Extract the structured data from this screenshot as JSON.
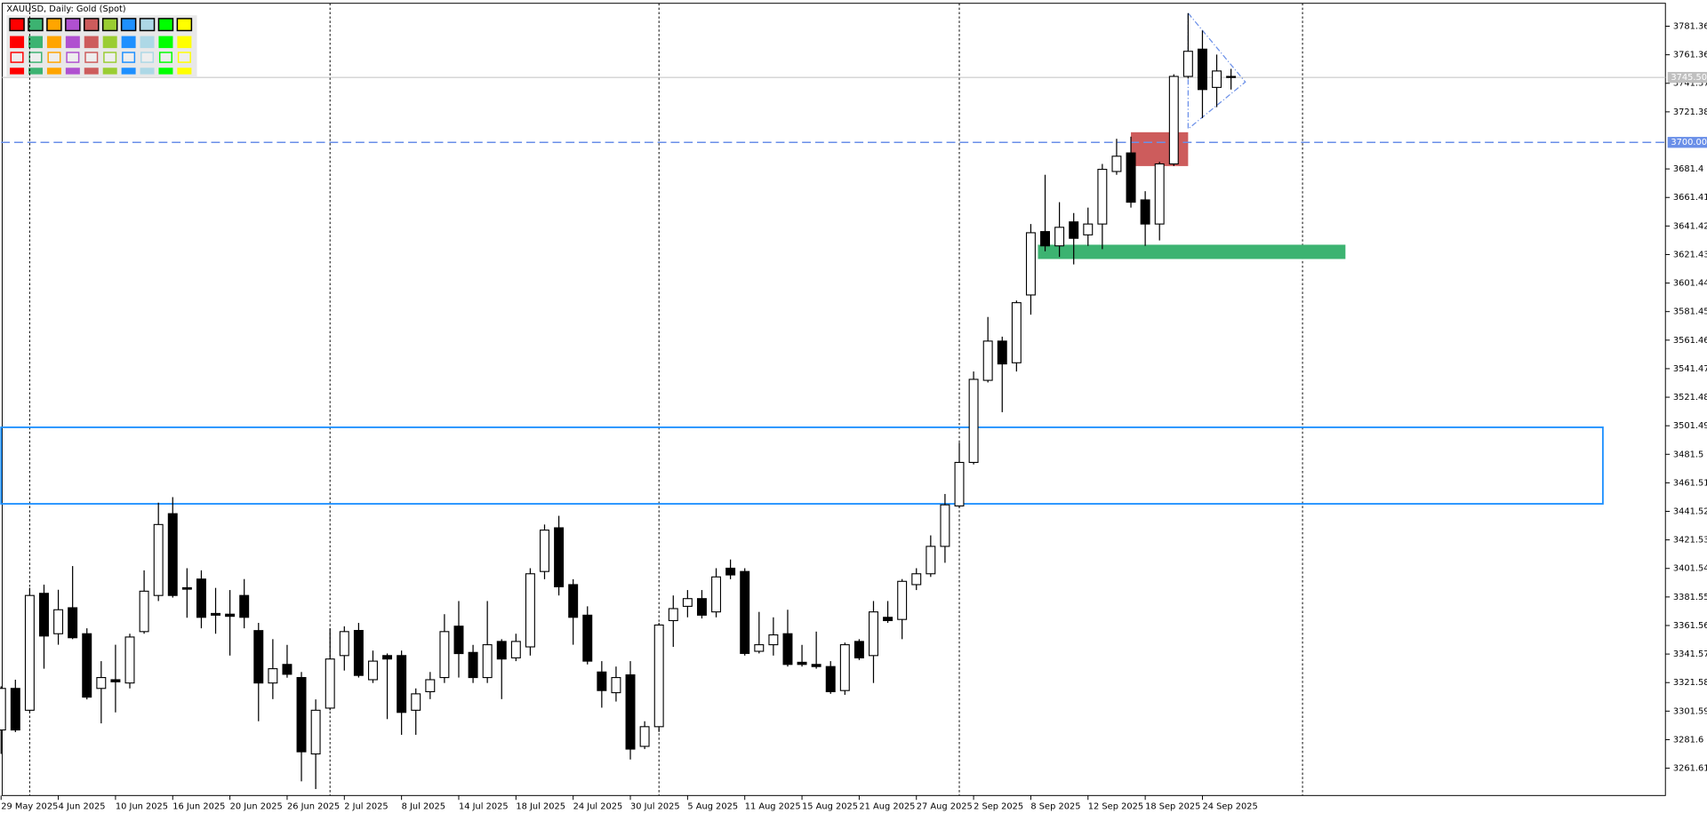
{
  "chart_data": {
    "type": "candlestick",
    "title": "XAUUSD, Daily:  Gold (Spot)",
    "x": [
      "29 May 2025",
      null,
      null,
      null,
      "4 Jun 2025",
      null,
      null,
      null,
      "10 Jun 2025",
      null,
      null,
      null,
      "16 Jun 2025",
      null,
      null,
      null,
      "20 Jun 2025",
      null,
      null,
      null,
      "26 Jun 2025",
      null,
      null,
      null,
      "2 Jul 2025",
      null,
      null,
      null,
      "8 Jul 2025",
      null,
      null,
      null,
      "14 Jul 2025",
      null,
      null,
      null,
      "18 Jul 2025",
      null,
      null,
      null,
      "24 Jul 2025",
      null,
      null,
      null,
      "30 Jul 2025",
      null,
      null,
      null,
      "5 Aug 2025",
      null,
      null,
      null,
      "11 Aug 2025",
      null,
      null,
      null,
      "15 Aug 2025",
      null,
      null,
      null,
      "21 Aug 2025",
      null,
      null,
      null,
      "27 Aug 2025",
      null,
      null,
      null,
      "2 Sep 2025",
      null,
      null,
      null,
      "8 Sep 2025",
      null,
      null,
      null,
      "12 Sep 2025",
      null,
      null,
      null,
      "18 Sep 2025",
      null,
      null,
      null,
      "24 Sep 2025",
      null,
      null
    ],
    "series": [
      {
        "name": "XAUUSD",
        "up_color": "#ffffff",
        "down_color": "#000000",
        "open": [
          3288.4,
          3317.5,
          3302.2,
          3384.1,
          3355.8,
          3374,
          3355.8,
          3317.5,
          3323.6,
          3321.3,
          3357.3,
          3382.6,
          3439.9,
          3388,
          3394.1,
          3370,
          3369.5,
          3382.6,
          3358,
          3321.3,
          3334.3,
          3325.1,
          3271.6,
          3303.7,
          3340.5,
          3358.1,
          3323.6,
          3340.5,
          3340.5,
          3302.2,
          3315.2,
          3325.1,
          3361.1,
          3342.7,
          3325.1,
          3350.4,
          3338.9,
          3346.6,
          3399.4,
          3430,
          3390.2,
          3368.8,
          3329,
          3314.5,
          3327,
          3276.9,
          3290.7,
          3365,
          3375,
          3380.4,
          3371.1,
          3401.7,
          3399.4,
          3343.5,
          3348.1,
          3355.8,
          3335.8,
          3334.3,
          3332.8,
          3316,
          3350.4,
          3340.5,
          3367.3,
          3365.8,
          3390.2,
          3397.8,
          3417,
          3445.3,
          3475.8,
          3533.3,
          3560.8,
          3545.6,
          3593.1,
          3637.5,
          3627.5,
          3644.3,
          3635.2,
          3642.8,
          3679.6,
          3692.6,
          3659.7,
          3642.8,
          3684.9,
          3746.2,
          3765.3,
          3738.5,
          3746.2
        ],
        "high": [
          3319,
          3323.6,
          3387.9,
          3390.2,
          3386.6,
          3403.2,
          3359.6,
          3336.6,
          3348.1,
          3355.8,
          3400.2,
          3447.6,
          3451.5,
          3401.7,
          3400.2,
          3387.9,
          3386.4,
          3394.1,
          3363.4,
          3352,
          3348,
          3329,
          3309.8,
          3359.6,
          3361,
          3363.4,
          3344,
          3342,
          3344,
          3317.5,
          3329,
          3369.5,
          3378.7,
          3348,
          3378.7,
          3352,
          3355.8,
          3401.7,
          3432.3,
          3438.4,
          3394,
          3375,
          3336.6,
          3332.8,
          3336.6,
          3294.5,
          3363.4,
          3382.6,
          3386.4,
          3386.4,
          3401.7,
          3407.8,
          3401.7,
          3371.1,
          3367.3,
          3372.6,
          3348,
          3357.3,
          3336.6,
          3349.6,
          3352,
          3378.7,
          3378.7,
          3394.1,
          3401.7,
          3424.7,
          3453.7,
          3489.6,
          3539.5,
          3577.7,
          3563.9,
          3589.2,
          3642.8,
          3677.3,
          3658.1,
          3650.5,
          3654.3,
          3684.9,
          3702.5,
          3704,
          3665.8,
          3686.4,
          3747.7,
          3790.5,
          3778.3,
          3761.5,
          3751.5
        ],
        "low": [
          3271.6,
          3286.9,
          3300.7,
          3331.3,
          3348.1,
          3352,
          3309.8,
          3293,
          3300.7,
          3317.5,
          3355.8,
          3378.7,
          3381.1,
          3367,
          3359.6,
          3355.8,
          3340.5,
          3359.6,
          3294.5,
          3310,
          3325,
          3252.4,
          3247,
          3302.2,
          3330,
          3325.1,
          3321.3,
          3296,
          3285,
          3285,
          3310,
          3321.3,
          3325.1,
          3321.3,
          3321.3,
          3310,
          3336.6,
          3340.5,
          3394,
          3382.6,
          3348.1,
          3334.3,
          3304,
          3308.3,
          3267.7,
          3275,
          3287,
          3346.6,
          3367.3,
          3366.5,
          3367.3,
          3394,
          3340.5,
          3342,
          3340.5,
          3332.8,
          3332.8,
          3331.3,
          3313.7,
          3313,
          3337.4,
          3321.3,
          3363.4,
          3352,
          3386.4,
          3395.6,
          3405.5,
          3443.8,
          3474.4,
          3531.8,
          3511,
          3539.5,
          3579.3,
          3623.7,
          3619.8,
          3614.5,
          3627.5,
          3625.2,
          3677.3,
          3654.3,
          3627.5,
          3631.3,
          3683.4,
          3744.7,
          3717,
          3724.7,
          3737
        ],
        "close": [
          3317.5,
          3288.4,
          3382.6,
          3354.2,
          3372.6,
          3353,
          3311.4,
          3325.1,
          3322.1,
          3353.5,
          3385.6,
          3432.3,
          3382.6,
          3387,
          3367.3,
          3368.8,
          3368,
          3367.3,
          3321.3,
          3331.3,
          3327.4,
          3273.1,
          3302.2,
          3338.1,
          3357.3,
          3326.6,
          3336.6,
          3338.1,
          3300.7,
          3313.7,
          3323.6,
          3357.3,
          3341.9,
          3325.1,
          3348.1,
          3338.1,
          3350.4,
          3397.8,
          3428.4,
          3388.7,
          3367.3,
          3336.6,
          3316,
          3325.1,
          3275,
          3290.7,
          3361.9,
          3373.4,
          3380.4,
          3368.8,
          3395.6,
          3397,
          3342,
          3348.1,
          3355,
          3334.3,
          3334.3,
          3332.8,
          3315.2,
          3348.1,
          3338.9,
          3371.1,
          3365,
          3392.5,
          3397.8,
          3417,
          3446.1,
          3475.8,
          3534,
          3560.8,
          3544.8,
          3587.7,
          3636.7,
          3627.5,
          3640.5,
          3632.8,
          3642.8,
          3681.1,
          3690.3,
          3658.1,
          3642.8,
          3684.9,
          3746.2,
          3763.8,
          3737,
          3750,
          3745.5
        ]
      }
    ],
    "xlim": [
      -0.1,
      116.4
    ],
    "ylim": [
      3242.47,
      3797.43
    ],
    "yticks": [
      3781.36,
      3761.36,
      3741.37,
      3721.38,
      3681.4,
      3661.41,
      3641.42,
      3621.43,
      3601.44,
      3581.45,
      3561.46,
      3541.47,
      3521.48,
      3501.49,
      3481.5,
      3461.51,
      3441.52,
      3421.53,
      3401.54,
      3381.55,
      3361.56,
      3341.57,
      3321.58,
      3301.59,
      3281.6,
      3261.61
    ],
    "separators": [
      2,
      23,
      46,
      67,
      91
    ],
    "hlines": [
      {
        "value": 3700,
        "label": "3700.00",
        "color": "#6a8fe8",
        "style": "dashed"
      },
      {
        "value": 3745.5,
        "label": "3745.50",
        "color": "#c0c0c0",
        "style": "solid"
      }
    ],
    "rects": [
      {
        "x": [
          0,
          112
        ],
        "y": [
          3446.8,
          3500.4
        ],
        "color": "#1e90ff",
        "filled": false
      },
      {
        "x": [
          79,
          83
        ],
        "y": [
          3683.4,
          3707.1
        ],
        "color": "#cd5c5c",
        "filled": true
      },
      {
        "x": [
          72.5,
          94
        ],
        "y": [
          3618.3,
          3628.3
        ],
        "color": "#3cb371",
        "filled": true
      }
    ],
    "triangle": {
      "points": [
        [
          83,
          3790.5
        ],
        [
          87,
          3742.3
        ],
        [
          83,
          3709.4
        ]
      ],
      "color": "#6a8fe8"
    }
  }
}
